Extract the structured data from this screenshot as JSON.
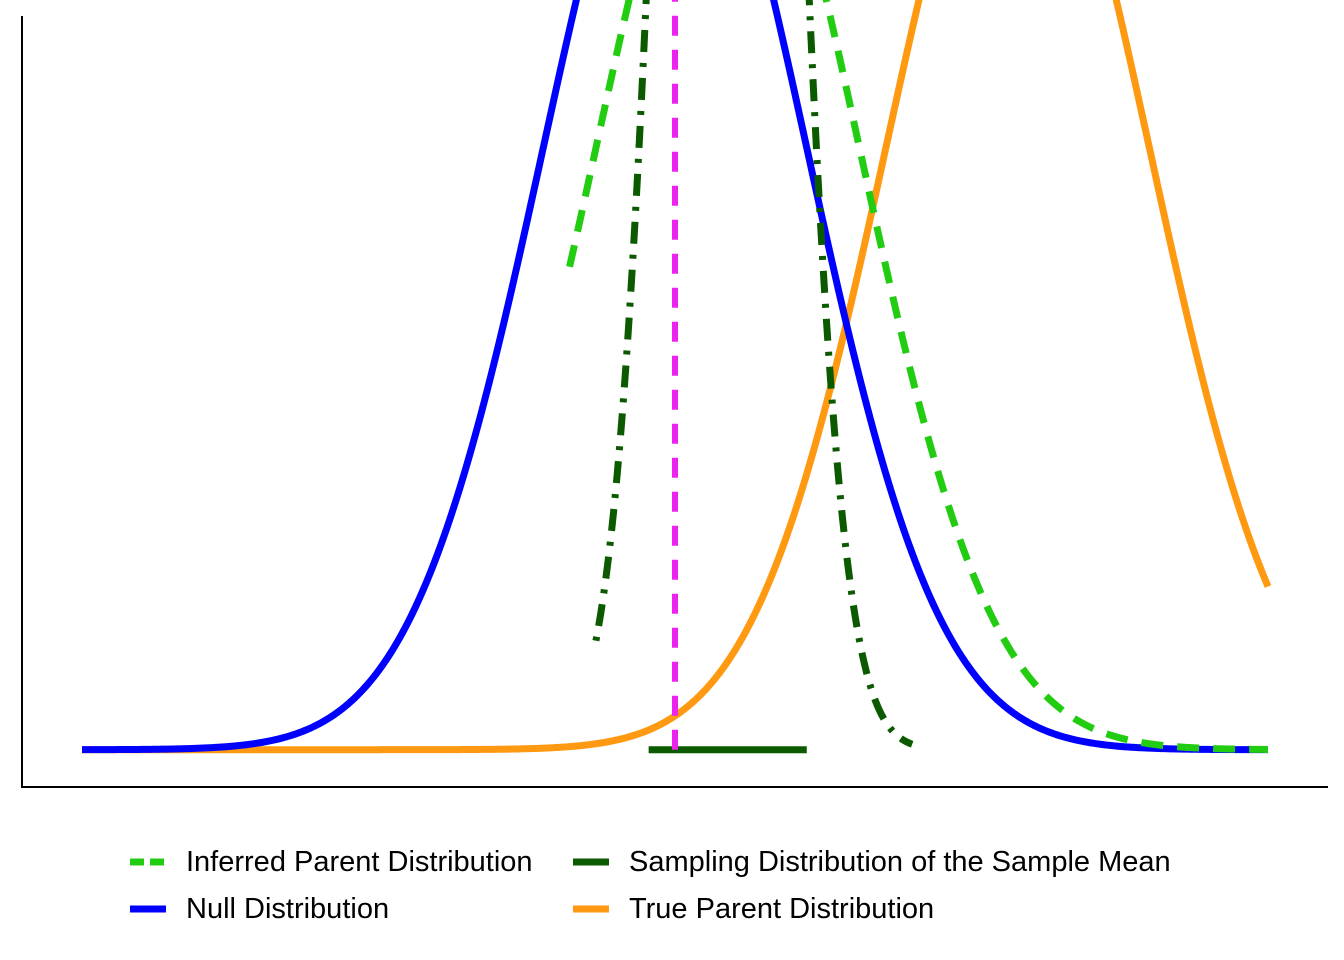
{
  "chart_data": {
    "type": "line",
    "title": "",
    "xlabel": "",
    "ylabel": "",
    "x_range": [
      -4.5,
      4.5
    ],
    "y_range": [
      -0.015,
      0.295
    ],
    "axes": {
      "x_ticks": false,
      "y_ticks": false,
      "grid": false
    },
    "legend_position": "bottom",
    "series": [
      {
        "name": "Inferred Parent Distribution",
        "kind": "normal",
        "mean": 0.4,
        "sd": 1.0,
        "support": [
          -0.8,
          4.5
        ],
        "color": "#22cc11",
        "style": "dashed"
      },
      {
        "name": "Sampling Distribution of the Sample Mean",
        "kind": "normal",
        "mean": 0.4,
        "sd": 0.4,
        "support": [
          -0.6,
          1.8
        ],
        "color": "#0b5a00",
        "style": "dotdash"
      },
      {
        "name": "Null Distribution",
        "kind": "normal",
        "mean": 0.0,
        "sd": 1.0,
        "support": [
          -4.5,
          4.5
        ],
        "color": "#0000ff",
        "style": "solid"
      },
      {
        "name": "True Parent Distribution",
        "kind": "normal",
        "mean": 2.6,
        "sd": 1.0,
        "support": [
          -4.5,
          4.5
        ],
        "color": "#ff9911",
        "style": "solid"
      }
    ],
    "reference_lines": [
      {
        "axis": "x",
        "value": 0.0,
        "y_to": 0.3989,
        "color": "#ee22ee",
        "style": "dashed"
      }
    ],
    "segments": [
      {
        "x_from": -0.2,
        "x_to": 1.0,
        "y": 0.0,
        "color": "#0b5a00",
        "style": "solid"
      }
    ]
  }
}
